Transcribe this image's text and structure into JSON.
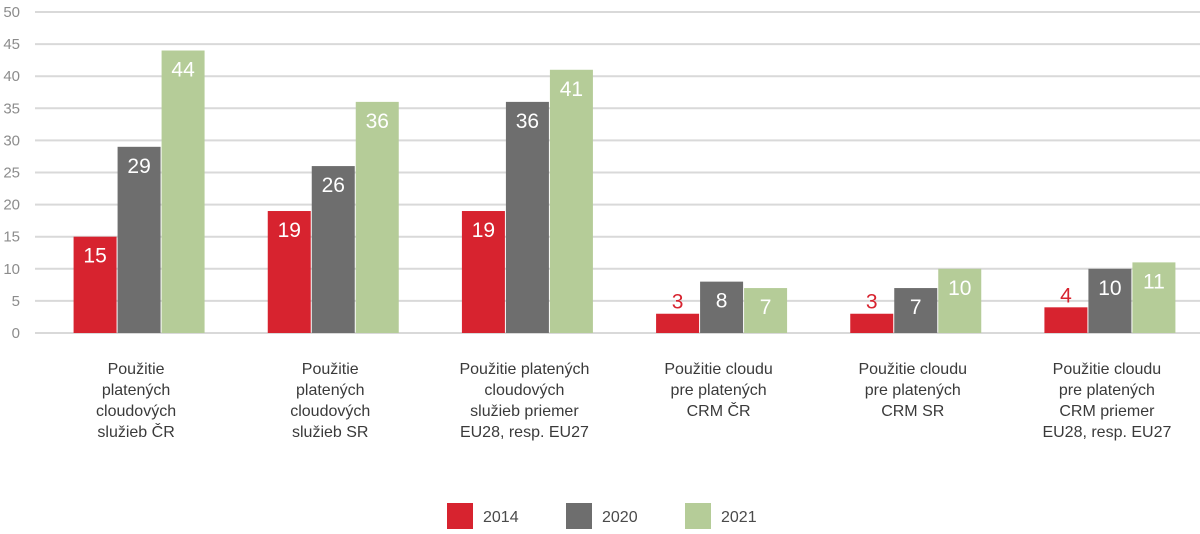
{
  "chart_data": {
    "type": "bar",
    "title": "",
    "xlabel": "",
    "ylabel": "",
    "ylim": [
      0,
      50
    ],
    "yticks": [
      0,
      5,
      10,
      15,
      20,
      25,
      30,
      35,
      40,
      45,
      50
    ],
    "grid": true,
    "legend_position": "bottom-center",
    "categories": [
      [
        "Použitie",
        "platených",
        "cloudových",
        "služieb ČR"
      ],
      [
        "Použitie",
        "platených",
        "cloudových",
        "služieb SR"
      ],
      [
        "Použitie platených",
        "cloudových",
        "služieb priemer",
        "EU28, resp. EU27"
      ],
      [
        "Použitie cloudu",
        "pre platených",
        "CRM ČR"
      ],
      [
        "Použitie cloudu",
        "pre platených",
        "CRM SR"
      ],
      [
        "Použitie cloudu",
        "pre platených",
        "CRM priemer",
        "EU28, resp. EU27"
      ]
    ],
    "series": [
      {
        "name": "2014",
        "color": "#d7232f",
        "values": [
          15,
          19,
          19,
          3,
          3,
          4
        ]
      },
      {
        "name": "2020",
        "color": "#6e6e6e",
        "values": [
          29,
          26,
          36,
          8,
          7,
          10
        ]
      },
      {
        "name": "2021",
        "color": "#b5cc98",
        "values": [
          44,
          36,
          41,
          7,
          10,
          11
        ]
      }
    ]
  }
}
